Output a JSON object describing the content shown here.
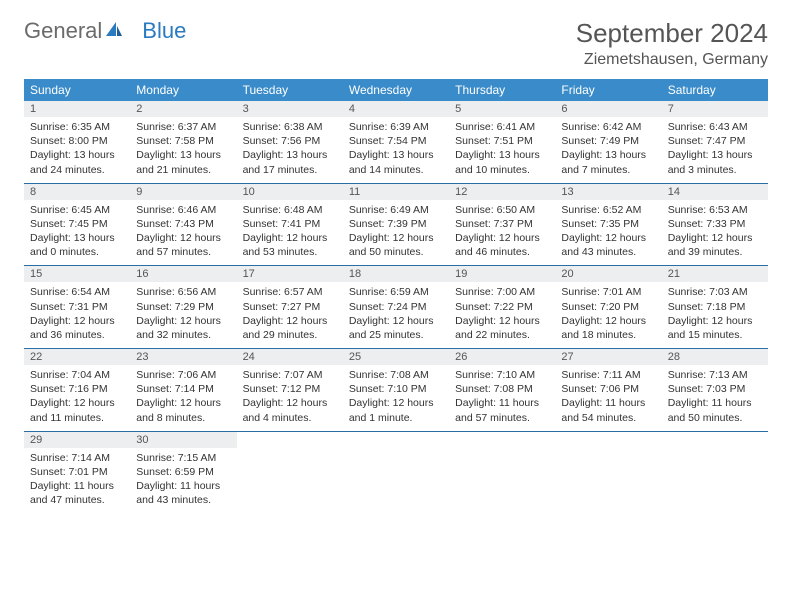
{
  "brand": {
    "part1": "General",
    "part2": "Blue"
  },
  "title": "September 2024",
  "location": "Ziemetshausen, Germany",
  "colors": {
    "header_bg": "#3a8bc9",
    "header_text": "#ffffff",
    "daynum_bg": "#eceeef",
    "border": "#2a6ea8",
    "logo_gray": "#6b6b6b",
    "logo_blue": "#2a7ac0"
  },
  "dow": [
    "Sunday",
    "Monday",
    "Tuesday",
    "Wednesday",
    "Thursday",
    "Friday",
    "Saturday"
  ],
  "weeks": [
    [
      {
        "n": "1",
        "sr": "Sunrise: 6:35 AM",
        "ss": "Sunset: 8:00 PM",
        "d1": "Daylight: 13 hours",
        "d2": "and 24 minutes."
      },
      {
        "n": "2",
        "sr": "Sunrise: 6:37 AM",
        "ss": "Sunset: 7:58 PM",
        "d1": "Daylight: 13 hours",
        "d2": "and 21 minutes."
      },
      {
        "n": "3",
        "sr": "Sunrise: 6:38 AM",
        "ss": "Sunset: 7:56 PM",
        "d1": "Daylight: 13 hours",
        "d2": "and 17 minutes."
      },
      {
        "n": "4",
        "sr": "Sunrise: 6:39 AM",
        "ss": "Sunset: 7:54 PM",
        "d1": "Daylight: 13 hours",
        "d2": "and 14 minutes."
      },
      {
        "n": "5",
        "sr": "Sunrise: 6:41 AM",
        "ss": "Sunset: 7:51 PM",
        "d1": "Daylight: 13 hours",
        "d2": "and 10 minutes."
      },
      {
        "n": "6",
        "sr": "Sunrise: 6:42 AM",
        "ss": "Sunset: 7:49 PM",
        "d1": "Daylight: 13 hours",
        "d2": "and 7 minutes."
      },
      {
        "n": "7",
        "sr": "Sunrise: 6:43 AM",
        "ss": "Sunset: 7:47 PM",
        "d1": "Daylight: 13 hours",
        "d2": "and 3 minutes."
      }
    ],
    [
      {
        "n": "8",
        "sr": "Sunrise: 6:45 AM",
        "ss": "Sunset: 7:45 PM",
        "d1": "Daylight: 13 hours",
        "d2": "and 0 minutes."
      },
      {
        "n": "9",
        "sr": "Sunrise: 6:46 AM",
        "ss": "Sunset: 7:43 PM",
        "d1": "Daylight: 12 hours",
        "d2": "and 57 minutes."
      },
      {
        "n": "10",
        "sr": "Sunrise: 6:48 AM",
        "ss": "Sunset: 7:41 PM",
        "d1": "Daylight: 12 hours",
        "d2": "and 53 minutes."
      },
      {
        "n": "11",
        "sr": "Sunrise: 6:49 AM",
        "ss": "Sunset: 7:39 PM",
        "d1": "Daylight: 12 hours",
        "d2": "and 50 minutes."
      },
      {
        "n": "12",
        "sr": "Sunrise: 6:50 AM",
        "ss": "Sunset: 7:37 PM",
        "d1": "Daylight: 12 hours",
        "d2": "and 46 minutes."
      },
      {
        "n": "13",
        "sr": "Sunrise: 6:52 AM",
        "ss": "Sunset: 7:35 PM",
        "d1": "Daylight: 12 hours",
        "d2": "and 43 minutes."
      },
      {
        "n": "14",
        "sr": "Sunrise: 6:53 AM",
        "ss": "Sunset: 7:33 PM",
        "d1": "Daylight: 12 hours",
        "d2": "and 39 minutes."
      }
    ],
    [
      {
        "n": "15",
        "sr": "Sunrise: 6:54 AM",
        "ss": "Sunset: 7:31 PM",
        "d1": "Daylight: 12 hours",
        "d2": "and 36 minutes."
      },
      {
        "n": "16",
        "sr": "Sunrise: 6:56 AM",
        "ss": "Sunset: 7:29 PM",
        "d1": "Daylight: 12 hours",
        "d2": "and 32 minutes."
      },
      {
        "n": "17",
        "sr": "Sunrise: 6:57 AM",
        "ss": "Sunset: 7:27 PM",
        "d1": "Daylight: 12 hours",
        "d2": "and 29 minutes."
      },
      {
        "n": "18",
        "sr": "Sunrise: 6:59 AM",
        "ss": "Sunset: 7:24 PM",
        "d1": "Daylight: 12 hours",
        "d2": "and 25 minutes."
      },
      {
        "n": "19",
        "sr": "Sunrise: 7:00 AM",
        "ss": "Sunset: 7:22 PM",
        "d1": "Daylight: 12 hours",
        "d2": "and 22 minutes."
      },
      {
        "n": "20",
        "sr": "Sunrise: 7:01 AM",
        "ss": "Sunset: 7:20 PM",
        "d1": "Daylight: 12 hours",
        "d2": "and 18 minutes."
      },
      {
        "n": "21",
        "sr": "Sunrise: 7:03 AM",
        "ss": "Sunset: 7:18 PM",
        "d1": "Daylight: 12 hours",
        "d2": "and 15 minutes."
      }
    ],
    [
      {
        "n": "22",
        "sr": "Sunrise: 7:04 AM",
        "ss": "Sunset: 7:16 PM",
        "d1": "Daylight: 12 hours",
        "d2": "and 11 minutes."
      },
      {
        "n": "23",
        "sr": "Sunrise: 7:06 AM",
        "ss": "Sunset: 7:14 PM",
        "d1": "Daylight: 12 hours",
        "d2": "and 8 minutes."
      },
      {
        "n": "24",
        "sr": "Sunrise: 7:07 AM",
        "ss": "Sunset: 7:12 PM",
        "d1": "Daylight: 12 hours",
        "d2": "and 4 minutes."
      },
      {
        "n": "25",
        "sr": "Sunrise: 7:08 AM",
        "ss": "Sunset: 7:10 PM",
        "d1": "Daylight: 12 hours",
        "d2": "and 1 minute."
      },
      {
        "n": "26",
        "sr": "Sunrise: 7:10 AM",
        "ss": "Sunset: 7:08 PM",
        "d1": "Daylight: 11 hours",
        "d2": "and 57 minutes."
      },
      {
        "n": "27",
        "sr": "Sunrise: 7:11 AM",
        "ss": "Sunset: 7:06 PM",
        "d1": "Daylight: 11 hours",
        "d2": "and 54 minutes."
      },
      {
        "n": "28",
        "sr": "Sunrise: 7:13 AM",
        "ss": "Sunset: 7:03 PM",
        "d1": "Daylight: 11 hours",
        "d2": "and 50 minutes."
      }
    ],
    [
      {
        "n": "29",
        "sr": "Sunrise: 7:14 AM",
        "ss": "Sunset: 7:01 PM",
        "d1": "Daylight: 11 hours",
        "d2": "and 47 minutes."
      },
      {
        "n": "30",
        "sr": "Sunrise: 7:15 AM",
        "ss": "Sunset: 6:59 PM",
        "d1": "Daylight: 11 hours",
        "d2": "and 43 minutes."
      },
      {
        "empty": true
      },
      {
        "empty": true
      },
      {
        "empty": true
      },
      {
        "empty": true
      },
      {
        "empty": true
      }
    ]
  ]
}
